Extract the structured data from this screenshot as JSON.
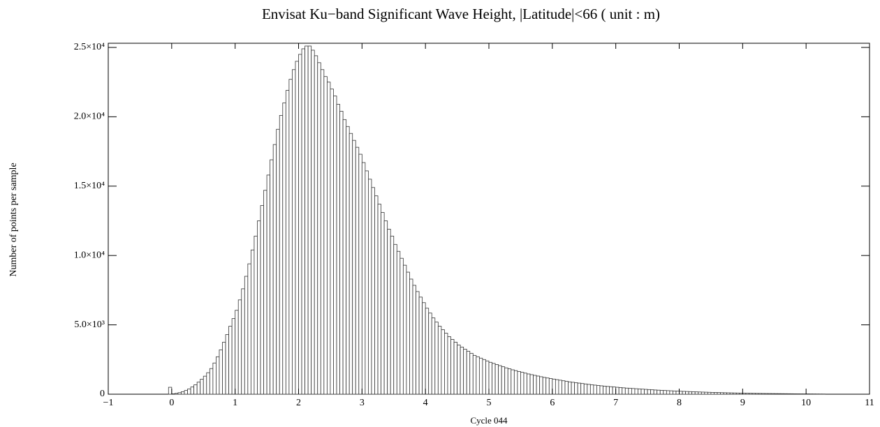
{
  "chart_data": {
    "type": "histogram",
    "title": "Envisat Ku−band Significant Wave Height, |Latitude|<66  ( unit : m)",
    "x_label": "Cycle 044",
    "y_label": "Number of points per sample",
    "color": "#ffffff",
    "edge_color": "#333333",
    "xlim": [
      -1,
      11
    ],
    "ylim": [
      0,
      25300
    ],
    "xticks": [
      {
        "value": -1,
        "label": "−1"
      },
      0,
      1,
      2,
      3,
      4,
      5,
      6,
      7,
      8,
      9,
      10,
      11
    ],
    "yticks": [
      0,
      {
        "value": 5000,
        "label": "5.0×10³"
      },
      {
        "value": 10000,
        "label": "1.0×10⁴"
      },
      {
        "value": 15000,
        "label": "1.5×10⁴"
      },
      {
        "value": 20000,
        "label": "2.0×10⁴"
      },
      {
        "value": 25000,
        "label": "2.5×10⁴"
      }
    ],
    "bins": [
      -0.05,
      0,
      0.05,
      0.1,
      0.15,
      0.2,
      0.25,
      0.3,
      0.35,
      0.4,
      0.45,
      0.5,
      0.55,
      0.6,
      0.65,
      0.7,
      0.75,
      0.8,
      0.85,
      0.9,
      0.95,
      1,
      1.05,
      1.1,
      1.15,
      1.2,
      1.25,
      1.3,
      1.35,
      1.4,
      1.45,
      1.5,
      1.55,
      1.6,
      1.65,
      1.7,
      1.75,
      1.8,
      1.85,
      1.9,
      1.95,
      2,
      2.05,
      2.1,
      2.15,
      2.2,
      2.25,
      2.3,
      2.35,
      2.4,
      2.45,
      2.5,
      2.55,
      2.6,
      2.65,
      2.7,
      2.75,
      2.8,
      2.85,
      2.9,
      2.95,
      3,
      3.05,
      3.1,
      3.15,
      3.2,
      3.25,
      3.3,
      3.35,
      3.4,
      3.45,
      3.5,
      3.55,
      3.6,
      3.65,
      3.7,
      3.75,
      3.8,
      3.85,
      3.9,
      3.95,
      4,
      4.05,
      4.1,
      4.15,
      4.2,
      4.25,
      4.3,
      4.35,
      4.4,
      4.45,
      4.5,
      4.55,
      4.6,
      4.65,
      4.7,
      4.75,
      4.8,
      4.85,
      4.9,
      4.95,
      5,
      5.05,
      5.1,
      5.15,
      5.2,
      5.25,
      5.3,
      5.35,
      5.4,
      5.45,
      5.5,
      5.55,
      5.6,
      5.65,
      5.7,
      5.75,
      5.8,
      5.85,
      5.9,
      5.95,
      6,
      6.05,
      6.1,
      6.15,
      6.2,
      6.25,
      6.3,
      6.35,
      6.4,
      6.45,
      6.5,
      6.55,
      6.6,
      6.65,
      6.7,
      6.75,
      6.8,
      6.85,
      6.9,
      6.95,
      7,
      7.05,
      7.1,
      7.15,
      7.2,
      7.25,
      7.3,
      7.35,
      7.4,
      7.45,
      7.5,
      7.55,
      7.6,
      7.65,
      7.7,
      7.75,
      7.8,
      7.85,
      7.9,
      7.95,
      8,
      8.05,
      8.1,
      8.15,
      8.2,
      8.25,
      8.3,
      8.35,
      8.4,
      8.45,
      8.5,
      8.55,
      8.6,
      8.65,
      8.7,
      8.75,
      8.8,
      8.85,
      8.9,
      8.95,
      9,
      9.05,
      9.1,
      9.15,
      9.2,
      9.25,
      9.3,
      9.35,
      9.4,
      9.45,
      9.5,
      9.55,
      9.6,
      9.65,
      9.7,
      9.75,
      9.8,
      9.85,
      9.9,
      9.95,
      10,
      10.05,
      10.1,
      10.15,
      10.2,
      10.25,
      10.3
    ],
    "values": [
      500,
      30,
      60,
      110,
      180,
      270,
      380,
      520,
      680,
      870,
      1080,
      1300,
      1550,
      1850,
      2250,
      2700,
      3200,
      3750,
      4300,
      4900,
      5450,
      6050,
      6800,
      7600,
      8500,
      9400,
      10400,
      11400,
      12500,
      13600,
      14700,
      15800,
      16900,
      18000,
      19100,
      20100,
      21000,
      21900,
      22700,
      23400,
      24000,
      24500,
      24900,
      25100,
      25100,
      24800,
      24400,
      23900,
      23400,
      22900,
      22500,
      22000,
      21500,
      20900,
      20400,
      19800,
      19300,
      18800,
      18300,
      17800,
      17300,
      16700,
      16100,
      15500,
      14900,
      14300,
      13700,
      13100,
      12500,
      11900,
      11400,
      10800,
      10300,
      9800,
      9300,
      8800,
      8300,
      7850,
      7400,
      7000,
      6600,
      6200,
      5850,
      5500,
      5200,
      4900,
      4650,
      4400,
      4150,
      3950,
      3750,
      3550,
      3400,
      3250,
      3100,
      2950,
      2800,
      2700,
      2600,
      2500,
      2400,
      2300,
      2220,
      2140,
      2060,
      1980,
      1900,
      1830,
      1760,
      1700,
      1640,
      1580,
      1520,
      1460,
      1410,
      1360,
      1310,
      1260,
      1210,
      1170,
      1130,
      1090,
      1050,
      1010,
      970,
      930,
      890,
      860,
      830,
      800,
      770,
      740,
      710,
      680,
      655,
      630,
      605,
      580,
      560,
      540,
      520,
      500,
      480,
      460,
      440,
      425,
      410,
      395,
      380,
      365,
      350,
      335,
      320,
      305,
      292,
      280,
      268,
      256,
      245,
      234,
      224,
      214,
      204,
      195,
      186,
      177,
      168,
      160,
      152,
      145,
      138,
      131,
      124,
      118,
      112,
      106,
      100,
      95,
      90,
      85,
      80,
      76,
      72,
      68,
      64,
      60,
      57,
      54,
      51,
      48,
      45,
      42,
      40,
      38,
      36,
      34,
      32,
      30,
      28,
      26,
      25,
      24,
      22,
      20,
      18,
      16,
      15
    ]
  }
}
